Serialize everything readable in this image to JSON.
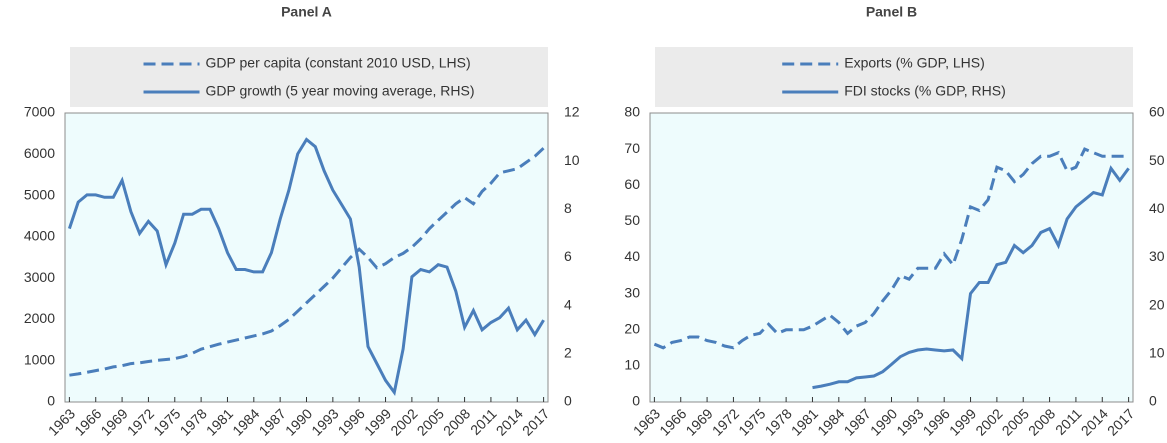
{
  "chart_data": [
    {
      "type": "line",
      "title": "Panel A",
      "x": [
        1963,
        1964,
        1965,
        1966,
        1967,
        1968,
        1969,
        1970,
        1971,
        1972,
        1973,
        1974,
        1975,
        1976,
        1977,
        1978,
        1979,
        1980,
        1981,
        1982,
        1983,
        1984,
        1985,
        1986,
        1987,
        1988,
        1989,
        1990,
        1991,
        1992,
        1993,
        1994,
        1995,
        1996,
        1997,
        1998,
        1999,
        2000,
        2001,
        2002,
        2003,
        2004,
        2005,
        2006,
        2007,
        2008,
        2009,
        2010,
        2011,
        2012,
        2013,
        2014,
        2015,
        2016,
        2017
      ],
      "xlim": [
        1962.5,
        2017.5
      ],
      "xticks": [
        1963,
        1966,
        1969,
        1972,
        1975,
        1978,
        1981,
        1984,
        1987,
        1990,
        1993,
        1996,
        1999,
        2002,
        2005,
        2008,
        2011,
        2014,
        2017
      ],
      "ylim": [
        0,
        7000
      ],
      "yticks": [
        0,
        1000,
        2000,
        3000,
        4000,
        5000,
        6000,
        7000
      ],
      "y2lim": [
        0,
        12
      ],
      "y2ticks": [
        0,
        2,
        4,
        6,
        8,
        10,
        12
      ],
      "plot_background": "#eefcfd",
      "legend_background": "#ebebeb",
      "series": [
        {
          "name": "GDP per capita (constant 2010 USD, LHS)",
          "color": "#4a7ebb",
          "line_style": "dashed",
          "axis": "y",
          "values": [
            650,
            680,
            720,
            760,
            800,
            850,
            880,
            930,
            950,
            980,
            1010,
            1030,
            1050,
            1100,
            1180,
            1280,
            1340,
            1400,
            1450,
            1500,
            1550,
            1600,
            1650,
            1720,
            1850,
            2000,
            2200,
            2400,
            2600,
            2800,
            3000,
            3250,
            3500,
            3700,
            3500,
            3250,
            3350,
            3500,
            3600,
            3750,
            3950,
            4200,
            4400,
            4600,
            4800,
            4950,
            4800,
            5100,
            5300,
            5550,
            5600,
            5650,
            5800,
            5950,
            6150
          ]
        },
        {
          "name": "GDP growth (5 year moving average, RHS)",
          "color": "#4a7ebb",
          "line_style": "solid",
          "axis": "y2",
          "values": [
            7.2,
            8.3,
            8.6,
            8.6,
            8.5,
            8.5,
            9.2,
            7.9,
            7.0,
            7.5,
            7.1,
            5.7,
            6.6,
            7.8,
            7.8,
            8.0,
            8.0,
            7.2,
            6.2,
            5.5,
            5.5,
            5.4,
            5.4,
            6.2,
            7.6,
            8.8,
            10.3,
            10.9,
            10.6,
            9.6,
            8.8,
            8.2,
            7.6,
            5.6,
            2.3,
            1.6,
            0.9,
            0.4,
            2.2,
            5.2,
            5.5,
            5.4,
            5.7,
            5.6,
            4.6,
            3.1,
            3.8,
            3.0,
            3.3,
            3.5,
            3.9,
            3.0,
            3.4,
            2.8,
            3.4
          ]
        }
      ]
    },
    {
      "type": "line",
      "title": "Panel B",
      "x": [
        1963,
        1964,
        1965,
        1966,
        1967,
        1968,
        1969,
        1970,
        1971,
        1972,
        1973,
        1974,
        1975,
        1976,
        1977,
        1978,
        1979,
        1980,
        1981,
        1982,
        1983,
        1984,
        1985,
        1986,
        1987,
        1988,
        1989,
        1990,
        1991,
        1992,
        1993,
        1994,
        1995,
        1996,
        1997,
        1998,
        1999,
        2000,
        2001,
        2002,
        2003,
        2004,
        2005,
        2006,
        2007,
        2008,
        2009,
        2010,
        2011,
        2012,
        2013,
        2014,
        2015,
        2016,
        2017
      ],
      "xlim": [
        1962.5,
        2017.5
      ],
      "xticks": [
        1963,
        1966,
        1969,
        1972,
        1975,
        1978,
        1981,
        1984,
        1987,
        1990,
        1993,
        1996,
        1999,
        2002,
        2005,
        2008,
        2011,
        2014,
        2017
      ],
      "ylim": [
        0,
        80
      ],
      "yticks": [
        0,
        10,
        20,
        30,
        40,
        50,
        60,
        70,
        80
      ],
      "y2lim": [
        0,
        60
      ],
      "y2ticks": [
        0,
        10,
        20,
        30,
        40,
        50,
        60
      ],
      "plot_background": "#eefcfd",
      "legend_background": "#ebebeb",
      "series": [
        {
          "name": "Exports (% GDP, LHS)",
          "color": "#4a7ebb",
          "line_style": "dashed",
          "axis": "y",
          "values": [
            16,
            15,
            16.5,
            17,
            18,
            18,
            17,
            16.5,
            15.5,
            15,
            17,
            18.5,
            19,
            21.5,
            19,
            20,
            20,
            20,
            21,
            22.5,
            24,
            22,
            19,
            21,
            22,
            24.5,
            28,
            31,
            35,
            34,
            37,
            37,
            37,
            41,
            38,
            45,
            54,
            53,
            56,
            65,
            64,
            61,
            63,
            66,
            68,
            68,
            69,
            64,
            65,
            70,
            69,
            68,
            68,
            68,
            68
          ]
        },
        {
          "name": "FDI stocks (% GDP, RHS)",
          "color": "#4a7ebb",
          "line_style": "solid",
          "axis": "y2",
          "values": [
            null,
            null,
            null,
            null,
            null,
            null,
            null,
            null,
            null,
            null,
            null,
            null,
            null,
            null,
            null,
            null,
            null,
            null,
            3,
            3.3,
            3.7,
            4.2,
            4.2,
            5,
            5.2,
            5.4,
            6.3,
            7.8,
            9.4,
            10.3,
            10.8,
            11.0,
            10.8,
            10.6,
            10.8,
            9.0,
            22.5,
            24.8,
            24.8,
            28.5,
            29,
            32.5,
            31,
            32.5,
            35.2,
            36,
            32.5,
            38,
            40.5,
            42,
            43.5,
            43,
            48.5,
            46,
            48.5
          ]
        }
      ]
    }
  ]
}
